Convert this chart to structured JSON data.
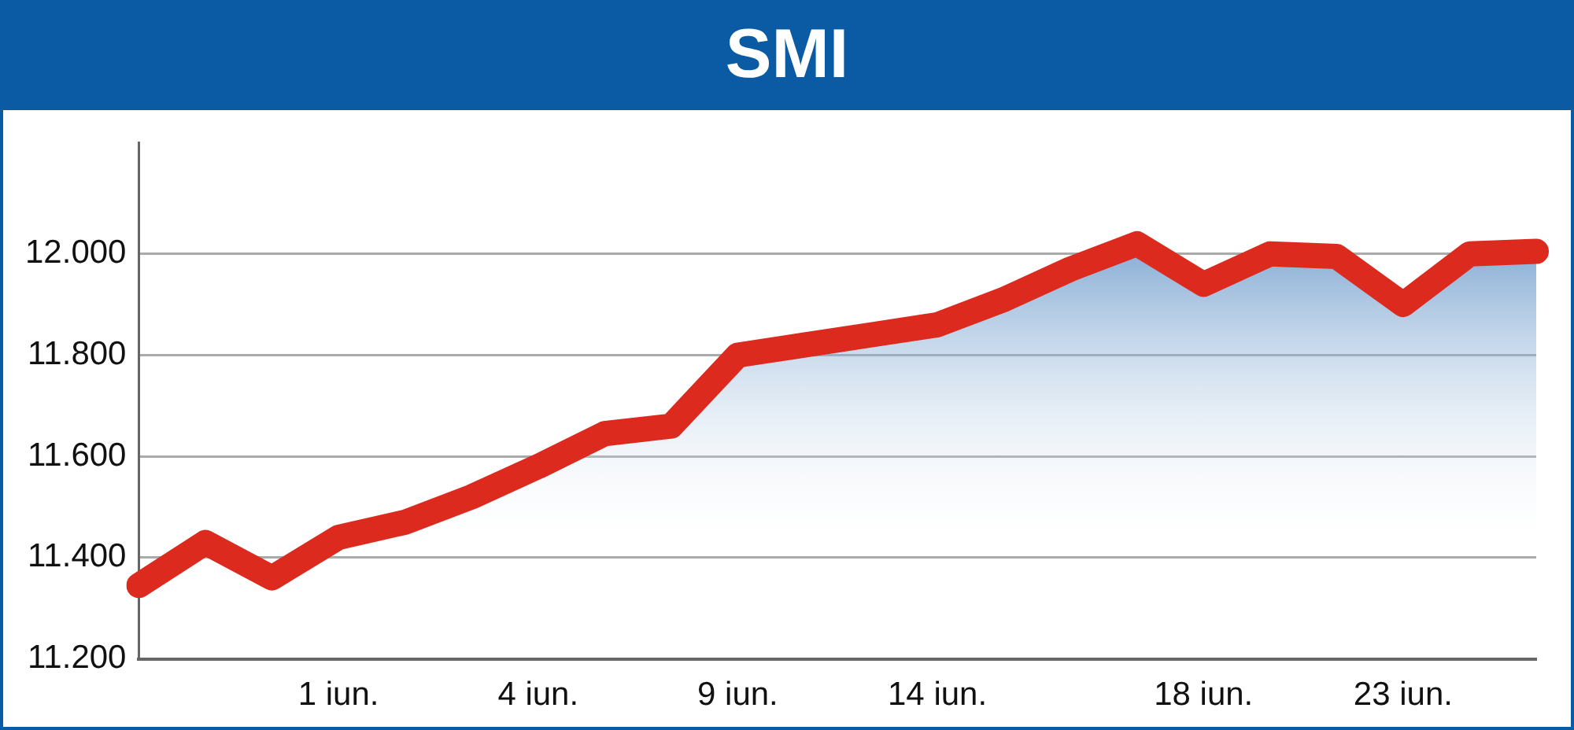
{
  "chart_data": {
    "type": "area",
    "title": "SMI",
    "categories": [
      null,
      null,
      null,
      "1 iun.",
      null,
      null,
      "4 iun.",
      null,
      null,
      "9 iun.",
      null,
      null,
      "14 iun.",
      null,
      null,
      null,
      "18 iun.",
      null,
      null,
      "23 iun.",
      null,
      null
    ],
    "series": [
      {
        "color": "#dc2a1e",
        "values": [
          11345,
          11430,
          11360,
          11440,
          11470,
          11520,
          11580,
          11645,
          11660,
          11800,
          11820,
          11840,
          11860,
          11910,
          11970,
          12020,
          11940,
          12000,
          11995,
          11900,
          12000,
          12005
        ]
      }
    ],
    "ylim": [
      11200,
      12220
    ],
    "yticks": [
      {
        "value": 11200,
        "label": "11.200"
      },
      {
        "value": 11400,
        "label": "11.400"
      },
      {
        "value": 11600,
        "label": "11.600"
      },
      {
        "value": 11800,
        "label": "11.800"
      },
      {
        "value": 12000,
        "label": "12.000"
      }
    ],
    "grid": "y",
    "legend": false
  }
}
